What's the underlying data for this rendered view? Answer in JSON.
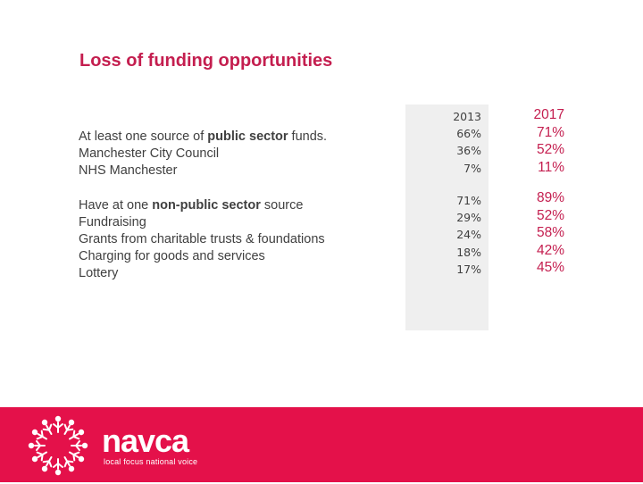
{
  "slide": {
    "title": "Loss of funding opportunities"
  },
  "public_sector": {
    "heading": {
      "before": "At least one source of ",
      "bold": "public sector",
      "after": " funds."
    },
    "items": [
      "Manchester City Council",
      "NHS Manchester"
    ],
    "values_2013": [
      "2013",
      "66%",
      "36%",
      "7%"
    ],
    "values_2017": [
      "2017",
      "71%",
      "52%",
      "11%"
    ]
  },
  "non_public_sector": {
    "heading": {
      "before": "Have at one ",
      "bold": "non-public sector",
      "after": " source"
    },
    "items": [
      "Fundraising",
      "Grants from charitable trusts & foundations",
      "Charging for goods and services",
      "Lottery"
    ],
    "values_2013": [
      "71%",
      "29%",
      "24%",
      "18%",
      "17%"
    ],
    "values_2017": [
      "89%",
      "52%",
      "58%",
      "42%",
      "45%"
    ]
  },
  "footer": {
    "logo_word": "navca",
    "tagline": "local focus national voice",
    "colors": {
      "background": "#e4114a",
      "accent": "#c41e4f"
    },
    "logo_icon": "people-ring-icon"
  }
}
